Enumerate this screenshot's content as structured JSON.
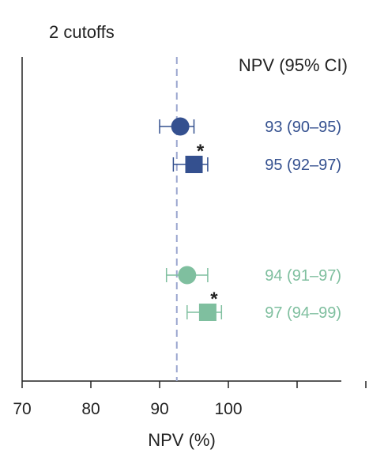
{
  "chart_data": {
    "type": "forest",
    "title": "2 cutoffs",
    "column_header": "NPV (95% CI)",
    "xlabel": "NPV (%)",
    "xlim": [
      70,
      100
    ],
    "xticks": [
      70,
      80,
      90,
      100
    ],
    "reference_line": 92.5,
    "rows": [
      {
        "value": 93,
        "lo": 90,
        "hi": 95,
        "label": "93 (90–95)",
        "marker": "circle",
        "color": "#34508f",
        "star": ""
      },
      {
        "value": 95,
        "lo": 92,
        "hi": 97,
        "label": "95 (92–97)",
        "marker": "square",
        "color": "#34508f",
        "star": "*"
      },
      {
        "value": 94,
        "lo": 91,
        "hi": 97,
        "label": "94 (91–97)",
        "marker": "circle",
        "color": "#7fbf9f",
        "star": ""
      },
      {
        "value": 97,
        "lo": 94,
        "hi": 99,
        "label": "97 (94–99)",
        "marker": "square",
        "color": "#7fbf9f",
        "star": "*"
      }
    ],
    "colors": {
      "axis": "#222222",
      "reference": "#9aa6cf"
    }
  }
}
